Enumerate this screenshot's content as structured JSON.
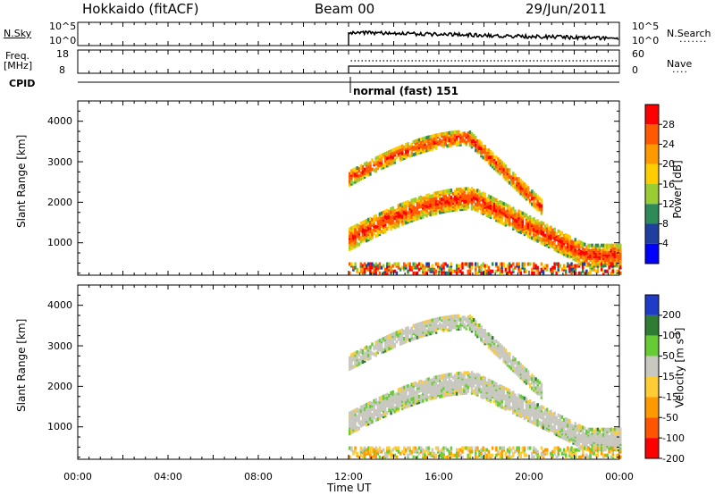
{
  "header": {
    "station": "Hokkaido (fitACF)",
    "beam": "Beam 00",
    "date": "29/Jun/2011"
  },
  "sky_panel": {
    "left_label": "N.Sky",
    "right_label": "N.Search",
    "left_ticks": [
      "10^5",
      "10^0"
    ],
    "right_ticks": [
      "10^5",
      "10^0"
    ]
  },
  "freq_panel": {
    "left_label_1": "Freq.",
    "left_label_2": "[MHz]",
    "left_ticks": [
      "18",
      "8"
    ],
    "right_ticks": [
      "60",
      "0"
    ],
    "right_label": "Nave"
  },
  "cpid": {
    "label": "CPID",
    "program": "normal (fast) 151"
  },
  "chart_data": [
    {
      "type": "heatmap",
      "name": "power",
      "ylabel": "Slant Range [km]",
      "yticks": [
        1000,
        2000,
        3000,
        4000
      ],
      "ylim": [
        200,
        4500
      ],
      "xlim_hours": [
        0,
        24
      ],
      "colorbar": {
        "label": "Power [dB]",
        "ticks": [
          "28",
          "24",
          "20",
          "16",
          "12",
          "8",
          "4"
        ],
        "colors": [
          "#ff0000",
          "#ff5a00",
          "#ff9900",
          "#ffcc00",
          "#9acd32",
          "#2e8b57",
          "#1e3fa0",
          "#0000ff"
        ]
      }
    },
    {
      "type": "heatmap",
      "name": "velocity",
      "ylabel": "Slant Range [km]",
      "yticks": [
        1000,
        2000,
        3000,
        4000
      ],
      "ylim": [
        200,
        4500
      ],
      "xlim_hours": [
        0,
        24
      ],
      "colorbar": {
        "label": "Velocity [m s-1]",
        "ticks": [
          "200",
          "100",
          "50",
          "15",
          "-15",
          "-50",
          "-100",
          "-200"
        ],
        "colors": [
          "#1e3cc8",
          "#2e7d32",
          "#66cc33",
          "#c8c8c0",
          "#ffcc33",
          "#ff9900",
          "#ff5500",
          "#ff0000"
        ]
      }
    }
  ],
  "xaxis": {
    "ticks": [
      "00:00",
      "04:00",
      "08:00",
      "12:00",
      "16:00",
      "20:00",
      "00:00"
    ],
    "label": "Time UT"
  }
}
